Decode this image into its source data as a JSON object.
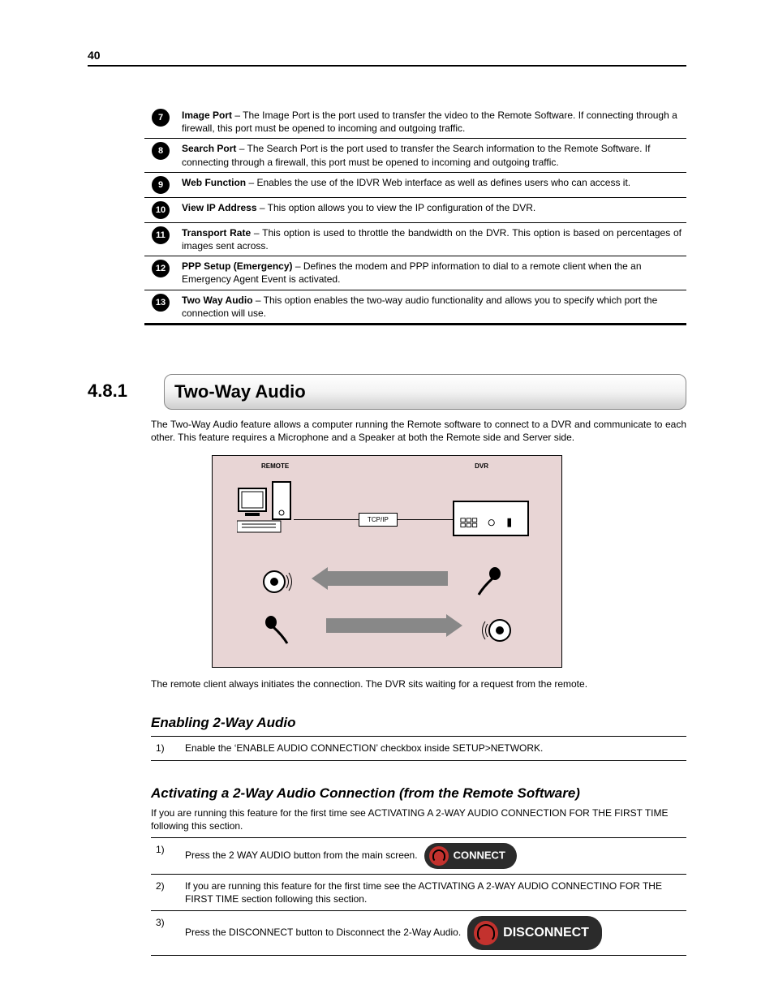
{
  "page_number": "40",
  "definitions": [
    {
      "num": "7",
      "title": "Image Port",
      "text": " – The Image Port is the port used to transfer the video to the Remote Software. If connecting through a firewall, this port must be opened to incoming and outgoing traffic."
    },
    {
      "num": "8",
      "title": "Search Port",
      "text": " – The Search Port is the port used to transfer the Search information to the Remote Software. If connecting through a firewall, this port must be opened to incoming and outgoing traffic."
    },
    {
      "num": "9",
      "title": "Web Function",
      "text": " – Enables the use of the IDVR Web interface as well as defines users who can access it."
    },
    {
      "num": "10",
      "title": "View IP Address",
      "text": " – This option allows you to view the IP configuration of the DVR."
    },
    {
      "num": "11",
      "title": "Transport Rate",
      "text": " – This option is used to throttle the bandwidth on the DVR. This option is based on percentages of images sent across.",
      "justify": true
    },
    {
      "num": "12",
      "title": "PPP Setup (Emergency)",
      "text": " – Defines the modem and PPP information to dial to a remote client when the an Emergency Agent Event is activated."
    },
    {
      "num": "13",
      "title": "Two Way Audio",
      "text": " – This option enables the two-way audio functionality and allows you to specify which port the connection will use."
    }
  ],
  "section": {
    "num": "4.8.1",
    "title": "Two-Way Audio",
    "intro": "The Two-Way Audio feature allows a computer running the Remote software to connect to a DVR and communicate to each other. This feature requires a Microphone and a Speaker at both the Remote side and Server side.",
    "diagram": {
      "remote": "REMOTE",
      "dvr": "DVR",
      "tcpip": "TCP/IP"
    },
    "note": "The remote client always initiates the connection. The DVR sits waiting for a request from the remote."
  },
  "enable": {
    "heading": "Enabling 2-Way Audio",
    "steps": [
      {
        "n": "1)",
        "text": "Enable the ‘ENABLE AUDIO CONNECTION’ checkbox inside SETUP>NETWORK."
      }
    ]
  },
  "activate": {
    "heading": "Activating a 2-Way Audio Connection (from the Remote Software)",
    "intro": "If you are running this feature for the first time see ACTIVATING A 2-WAY AUDIO CONNECTION FOR THE FIRST TIME following this section.",
    "steps": [
      {
        "n": "1)",
        "text": "Press the 2 WAY AUDIO button from the main screen.",
        "btn": "CONNECT",
        "btn_kind": "small"
      },
      {
        "n": "2)",
        "text": "If you are running this feature for the first time see the ACTIVATING A 2-WAY AUDIO CONNECTINO FOR THE FIRST TIME section following this section."
      },
      {
        "n": "3)",
        "text": "Press the DISCONNECT button to Disconnect the 2-Way Audio.",
        "btn": "DISCONNECT",
        "btn_kind": "big"
      }
    ]
  },
  "colors": {
    "diagram_bg": "#e8d5d5",
    "arrow": "#888888",
    "btn_bg": "#2b2b2b",
    "btn_accent": "#c3322e"
  }
}
